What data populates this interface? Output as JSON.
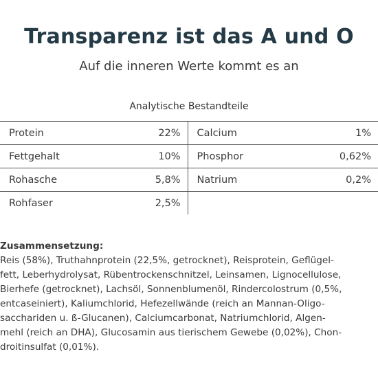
{
  "header": {
    "title": "Transparenz ist das A und O",
    "subtitle": "Auf die inneren Werte kommt es an"
  },
  "analysis": {
    "heading": "Analytische Bestandteile",
    "rows": [
      {
        "label1": "Protein",
        "value1": "22%",
        "label2": "Calcium",
        "value2": "1%"
      },
      {
        "label1": "Fettgehalt",
        "value1": "10%",
        "label2": "Phosphor",
        "value2": "0,62%"
      },
      {
        "label1": "Rohasche",
        "value1": "5,8%",
        "label2": "Natrium",
        "value2": "0,2%"
      },
      {
        "label1": "Rohfaser",
        "value1": "2,5%"
      }
    ]
  },
  "composition": {
    "heading": "Zusammensetzung:",
    "lines": [
      "Reis (58%), Truthahnprotein (22,5%, getrocknet), Reisprotein, Geflügel-",
      "fett, Leberhydrolysat, Rübentrockenschnitzel, Leinsamen, Lignocellulose,",
      "Bierhefe (getrocknet), Lachsöl, Sonnenblumenöl, Rindercolostrum (0,5%,",
      "entcaseiniert), Kaliumchlorid, Hefezellwände (reich an Mannan-Oligo-",
      "sacchariden u. ß-Glucanen), Calciumcarbonat, Natriumchlorid, Algen-",
      "mehl (reich an DHA), Glucosamin aus tierischem Gewebe (0,02%), Chon-",
      "droitinsulfat (0,01%)."
    ]
  }
}
